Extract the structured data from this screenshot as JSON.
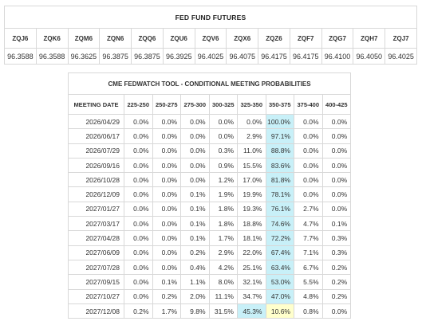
{
  "futures": {
    "title": "FED FUND FUTURES",
    "contracts": [
      {
        "symbol": "ZQJ6",
        "price": "96.3588"
      },
      {
        "symbol": "ZQK6",
        "price": "96.3588"
      },
      {
        "symbol": "ZQM6",
        "price": "96.3625"
      },
      {
        "symbol": "ZQN6",
        "price": "96.3875"
      },
      {
        "symbol": "ZQQ6",
        "price": "96.3875"
      },
      {
        "symbol": "ZQU6",
        "price": "96.3925"
      },
      {
        "symbol": "ZQV6",
        "price": "96.4025"
      },
      {
        "symbol": "ZQX6",
        "price": "96.4075"
      },
      {
        "symbol": "ZQZ6",
        "price": "96.4175"
      },
      {
        "symbol": "ZQF7",
        "price": "96.4175"
      },
      {
        "symbol": "ZQG7",
        "price": "96.4100"
      },
      {
        "symbol": "ZQH7",
        "price": "96.4050"
      },
      {
        "symbol": "ZQJ7",
        "price": "96.4025"
      }
    ]
  },
  "fedwatch": {
    "title": "CME FEDWATCH TOOL - CONDITIONAL MEETING PROBABILITIES",
    "columns": [
      "MEETING DATE",
      "225-250",
      "250-275",
      "275-300",
      "300-325",
      "325-350",
      "350-375",
      "375-400",
      "400-425"
    ],
    "highlight_colors": {
      "blue": "#c8f0f8",
      "yellow": "#ffffcc"
    },
    "rows": [
      {
        "date": "2026/04/29",
        "values": [
          "0.0%",
          "0.0%",
          "0.0%",
          "0.0%",
          "0.0%",
          "100.0%",
          "0.0%",
          "0.0%"
        ],
        "blue": 5,
        "yellow": -1
      },
      {
        "date": "2026/06/17",
        "values": [
          "0.0%",
          "0.0%",
          "0.0%",
          "0.0%",
          "2.9%",
          "97.1%",
          "0.0%",
          "0.0%"
        ],
        "blue": 5,
        "yellow": -1
      },
      {
        "date": "2026/07/29",
        "values": [
          "0.0%",
          "0.0%",
          "0.0%",
          "0.3%",
          "11.0%",
          "88.8%",
          "0.0%",
          "0.0%"
        ],
        "blue": 5,
        "yellow": -1
      },
      {
        "date": "2026/09/16",
        "values": [
          "0.0%",
          "0.0%",
          "0.0%",
          "0.9%",
          "15.5%",
          "83.6%",
          "0.0%",
          "0.0%"
        ],
        "blue": 5,
        "yellow": -1
      },
      {
        "date": "2026/10/28",
        "values": [
          "0.0%",
          "0.0%",
          "0.0%",
          "1.2%",
          "17.0%",
          "81.8%",
          "0.0%",
          "0.0%"
        ],
        "blue": 5,
        "yellow": -1
      },
      {
        "date": "2026/12/09",
        "values": [
          "0.0%",
          "0.0%",
          "0.1%",
          "1.9%",
          "19.9%",
          "78.1%",
          "0.0%",
          "0.0%"
        ],
        "blue": 5,
        "yellow": -1
      },
      {
        "date": "2027/01/27",
        "values": [
          "0.0%",
          "0.0%",
          "0.1%",
          "1.8%",
          "19.3%",
          "76.1%",
          "2.7%",
          "0.0%"
        ],
        "blue": 5,
        "yellow": -1
      },
      {
        "date": "2027/03/17",
        "values": [
          "0.0%",
          "0.0%",
          "0.1%",
          "1.8%",
          "18.8%",
          "74.6%",
          "4.7%",
          "0.1%"
        ],
        "blue": 5,
        "yellow": -1
      },
      {
        "date": "2027/04/28",
        "values": [
          "0.0%",
          "0.0%",
          "0.1%",
          "1.7%",
          "18.1%",
          "72.2%",
          "7.7%",
          "0.3%"
        ],
        "blue": 5,
        "yellow": -1
      },
      {
        "date": "2027/06/09",
        "values": [
          "0.0%",
          "0.0%",
          "0.2%",
          "2.9%",
          "22.0%",
          "67.4%",
          "7.1%",
          "0.3%"
        ],
        "blue": 5,
        "yellow": -1
      },
      {
        "date": "2027/07/28",
        "values": [
          "0.0%",
          "0.0%",
          "0.4%",
          "4.2%",
          "25.1%",
          "63.4%",
          "6.7%",
          "0.2%"
        ],
        "blue": 5,
        "yellow": -1
      },
      {
        "date": "2027/09/15",
        "values": [
          "0.0%",
          "0.1%",
          "1.1%",
          "8.0%",
          "32.1%",
          "53.0%",
          "5.5%",
          "0.2%"
        ],
        "blue": 5,
        "yellow": -1
      },
      {
        "date": "2027/10/27",
        "values": [
          "0.0%",
          "0.2%",
          "2.0%",
          "11.1%",
          "34.7%",
          "47.0%",
          "4.8%",
          "0.2%"
        ],
        "blue": 5,
        "yellow": -1
      },
      {
        "date": "2027/12/08",
        "values": [
          "0.2%",
          "1.7%",
          "9.8%",
          "31.5%",
          "45.3%",
          "10.6%",
          "0.8%",
          "0.0%"
        ],
        "blue": 4,
        "yellow": 5
      }
    ]
  }
}
